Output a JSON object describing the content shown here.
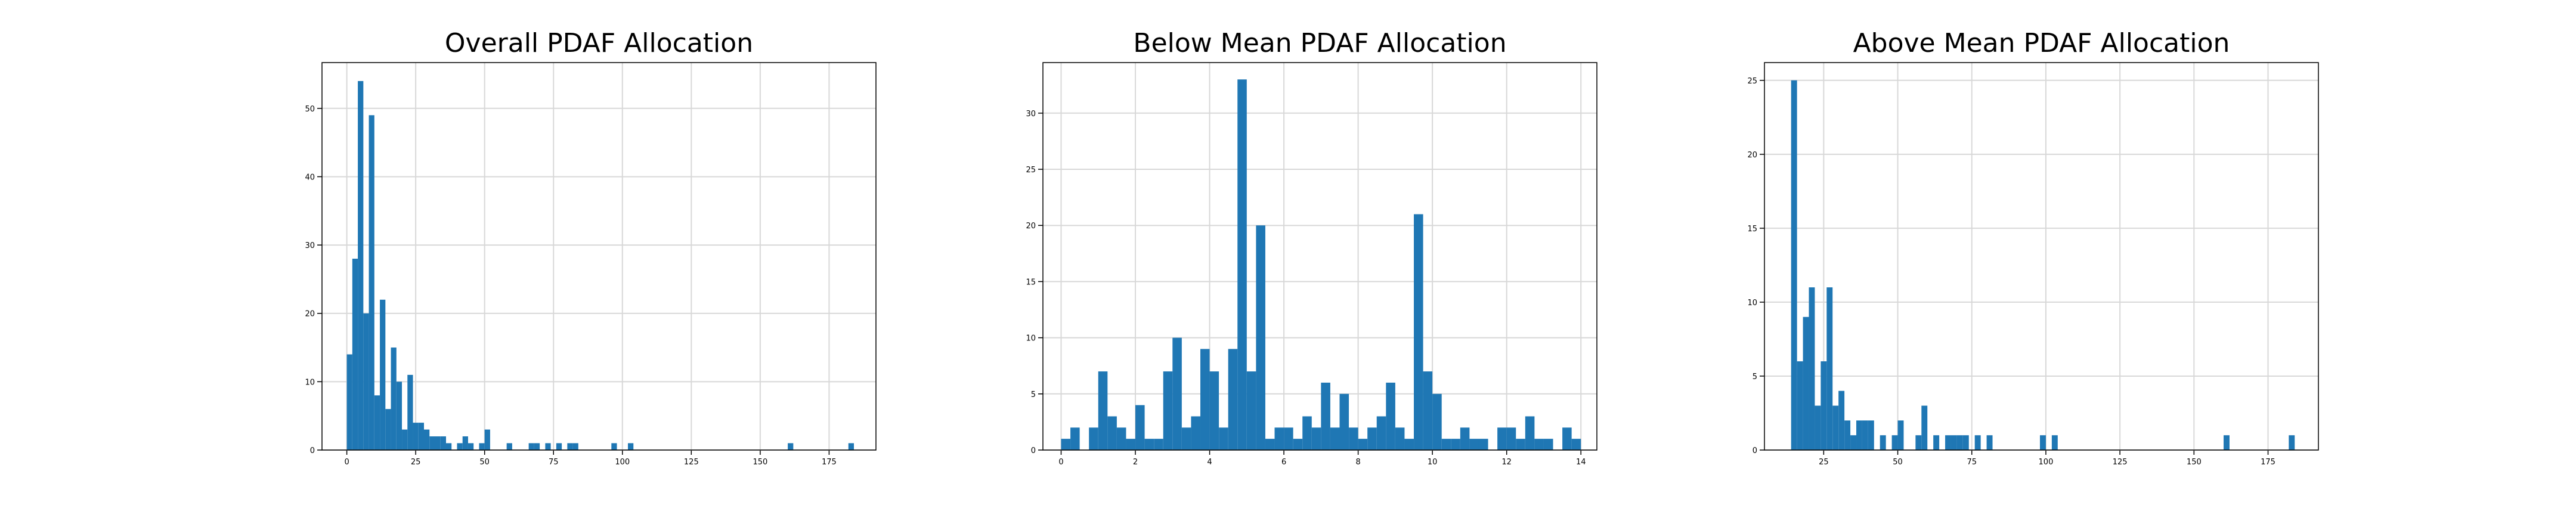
{
  "chart_data": [
    {
      "type": "histogram",
      "title": "Overall PDAF Allocation",
      "color": "#1f77b4",
      "grid": true,
      "bins": [
        0,
        2,
        4,
        6,
        8,
        10,
        12,
        14,
        16,
        18,
        20,
        22,
        24,
        26,
        28,
        30,
        32,
        34,
        36,
        38,
        40,
        42,
        44,
        46,
        48,
        50,
        52,
        54,
        56,
        58,
        60,
        62,
        64,
        66,
        68,
        70,
        72,
        74,
        76,
        78,
        80,
        82,
        84,
        86,
        88,
        90,
        92,
        94,
        96,
        98,
        100,
        102,
        104,
        106,
        108,
        110,
        112,
        114,
        116,
        118,
        120,
        122,
        124,
        126,
        128,
        130,
        132,
        134,
        136,
        138,
        140,
        142,
        144,
        146,
        148,
        150,
        152,
        154,
        156,
        158,
        160,
        162,
        164,
        166,
        168,
        170,
        172,
        174,
        176,
        178,
        180,
        182,
        184,
        186
      ],
      "values": [
        14,
        28,
        54,
        20,
        49,
        8,
        22,
        6,
        15,
        10,
        3,
        11,
        4,
        4,
        3,
        2,
        2,
        2,
        1,
        0,
        1,
        2,
        1,
        0,
        1,
        3,
        0,
        0,
        0,
        1,
        0,
        0,
        0,
        1,
        1,
        0,
        1,
        0,
        1,
        0,
        1,
        1,
        0,
        0,
        0,
        0,
        0,
        0,
        1,
        0,
        0,
        1,
        0,
        0,
        0,
        0,
        0,
        0,
        0,
        0,
        0,
        0,
        0,
        0,
        0,
        0,
        0,
        0,
        0,
        0,
        0,
        0,
        0,
        0,
        0,
        0,
        0,
        0,
        0,
        0,
        1,
        0,
        0,
        0,
        0,
        0,
        0,
        0,
        0,
        0,
        0,
        1,
        0
      ],
      "xlim": [
        -9,
        192
      ],
      "xticks": [
        0,
        25,
        50,
        75,
        100,
        125,
        150,
        175
      ],
      "ylim": [
        0,
        56.7
      ],
      "yticks": [
        0,
        10,
        20,
        30,
        40,
        50
      ]
    },
    {
      "type": "histogram",
      "title": "Below Mean PDAF Allocation",
      "color": "#1f77b4",
      "grid": true,
      "bins": [
        0,
        0.25,
        0.5,
        0.75,
        1,
        1.25,
        1.5,
        1.75,
        2,
        2.25,
        2.5,
        2.75,
        3,
        3.25,
        3.5,
        3.75,
        4,
        4.25,
        4.5,
        4.75,
        5,
        5.25,
        5.5,
        5.75,
        6,
        6.25,
        6.5,
        6.75,
        7,
        7.25,
        7.5,
        7.75,
        8,
        8.25,
        8.5,
        8.75,
        9,
        9.25,
        9.5,
        9.75,
        10,
        10.25,
        10.5,
        10.75,
        11,
        11.25,
        11.5,
        11.75,
        12,
        12.25,
        12.5,
        12.75,
        13,
        13.25,
        13.5,
        13.75,
        14
      ],
      "values": [
        1,
        2,
        0,
        2,
        7,
        3,
        2,
        1,
        4,
        1,
        1,
        7,
        10,
        2,
        3,
        9,
        7,
        2,
        9,
        33,
        7,
        20,
        1,
        2,
        2,
        1,
        3,
        2,
        6,
        2,
        5,
        2,
        1,
        2,
        3,
        6,
        2,
        1,
        21,
        7,
        5,
        1,
        1,
        2,
        1,
        1,
        0,
        2,
        2,
        1,
        3,
        1,
        1,
        0,
        2,
        1
      ],
      "xlim": [
        -0.49,
        14.43
      ],
      "xticks": [
        0,
        2,
        4,
        6,
        8,
        10,
        12,
        14
      ],
      "ylim": [
        0,
        34.5
      ],
      "yticks": [
        0,
        5,
        10,
        15,
        20,
        25,
        30
      ]
    },
    {
      "type": "histogram",
      "title": "Above Mean PDAF Allocation",
      "color": "#1f77b4",
      "grid": true,
      "bins": [
        14,
        16,
        18,
        20,
        22,
        24,
        26,
        28,
        30,
        32,
        34,
        36,
        38,
        40,
        42,
        44,
        46,
        48,
        50,
        52,
        54,
        56,
        58,
        60,
        62,
        64,
        66,
        68,
        70,
        72,
        74,
        76,
        78,
        80,
        82,
        84,
        86,
        88,
        90,
        92,
        94,
        96,
        98,
        100,
        102,
        104,
        106,
        108,
        110,
        112,
        114,
        116,
        118,
        120,
        122,
        124,
        126,
        128,
        130,
        132,
        134,
        136,
        138,
        140,
        142,
        144,
        146,
        148,
        150,
        152,
        154,
        156,
        158,
        160,
        162,
        164,
        166,
        168,
        170,
        172,
        174,
        176,
        178,
        180,
        182,
        184,
        186
      ],
      "values": [
        25,
        6,
        9,
        11,
        3,
        6,
        11,
        3,
        4,
        2,
        1,
        2,
        2,
        2,
        0,
        1,
        0,
        1,
        2,
        0,
        0,
        1,
        3,
        0,
        1,
        0,
        1,
        1,
        1,
        1,
        0,
        1,
        0,
        1,
        0,
        0,
        0,
        0,
        0,
        0,
        0,
        0,
        1,
        0,
        1,
        0,
        0,
        0,
        0,
        0,
        0,
        0,
        0,
        0,
        0,
        0,
        0,
        0,
        0,
        0,
        0,
        0,
        0,
        0,
        0,
        0,
        0,
        0,
        0,
        0,
        0,
        0,
        0,
        1,
        0,
        0,
        0,
        0,
        0,
        0,
        0,
        0,
        0,
        0,
        1,
        0
      ],
      "xlim": [
        5,
        192
      ],
      "xticks": [
        25,
        50,
        75,
        100,
        125,
        150,
        175
      ],
      "ylim": [
        0,
        26.2
      ],
      "yticks": [
        0,
        5,
        10,
        15,
        20,
        25
      ]
    }
  ]
}
